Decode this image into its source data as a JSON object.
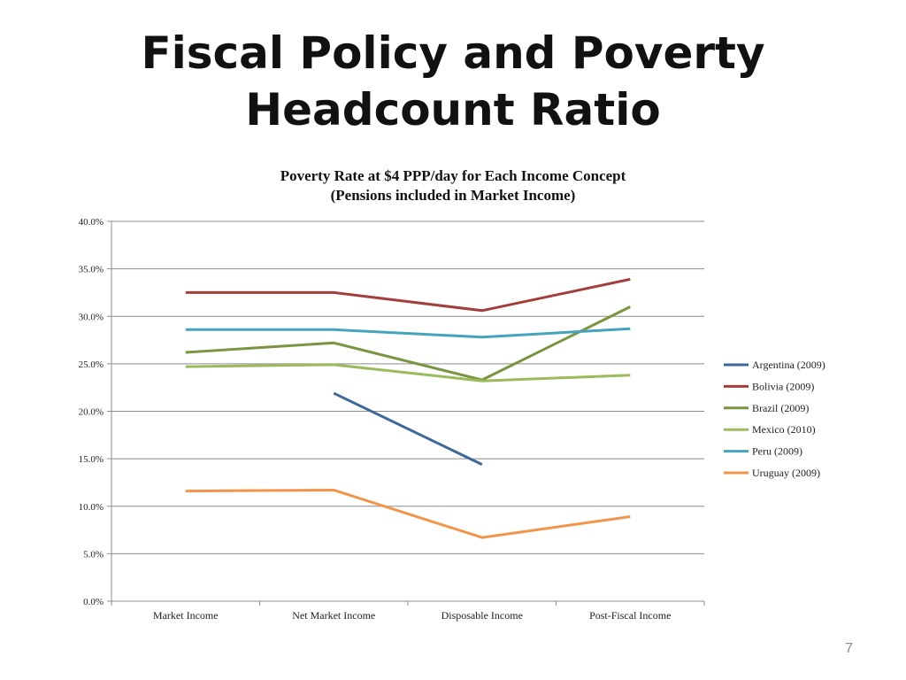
{
  "slide": {
    "title_line1": "Fiscal Policy and Poverty",
    "title_line2": "Headcount Ratio",
    "page_number": "7"
  },
  "chart_data": {
    "type": "line",
    "title": "Poverty Rate at $4 PPP/day for Each Income Concept",
    "subtitle": "(Pensions included in Market Income)",
    "categories": [
      "Market Income",
      "Net Market Income",
      "Disposable Income",
      "Post-Fiscal Income"
    ],
    "ylim": [
      0,
      40
    ],
    "ytick_step": 5,
    "ytick_format": "percent_1dp",
    "legend_position": "right",
    "series": [
      {
        "name": "Argentina (2009)",
        "color": "#3E679A",
        "values": [
          null,
          21.9,
          14.4,
          null
        ]
      },
      {
        "name": "Bolivia (2009)",
        "color": "#A23F3C",
        "values": [
          32.5,
          32.5,
          30.6,
          33.9
        ]
      },
      {
        "name": "Brazil (2009)",
        "color": "#799540",
        "values": [
          26.2,
          27.2,
          23.3,
          31.0
        ]
      },
      {
        "name": "Mexico (2010)",
        "color": "#9CBB5B",
        "values": [
          24.7,
          24.9,
          23.2,
          23.8
        ]
      },
      {
        "name": "Peru (2009)",
        "color": "#45A4BC",
        "values": [
          28.6,
          28.6,
          27.8,
          28.7
        ]
      },
      {
        "name": "Uruguay (2009)",
        "color": "#F2954A",
        "values": [
          11.6,
          11.7,
          6.7,
          8.9
        ]
      }
    ]
  }
}
